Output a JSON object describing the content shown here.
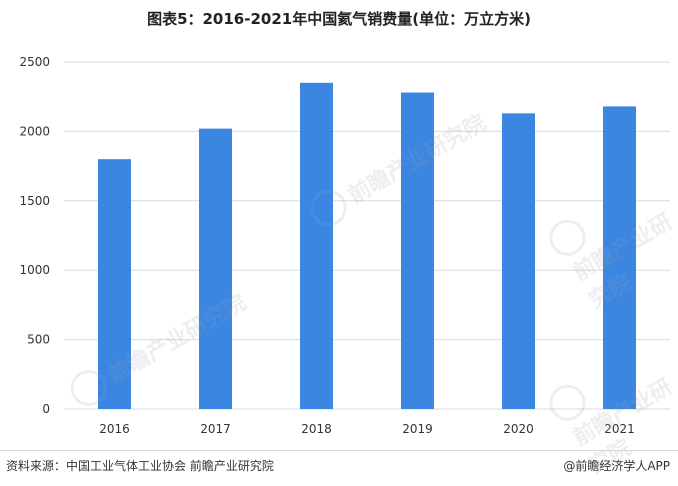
{
  "chart_data": {
    "type": "bar",
    "title": "图表5：2016-2021年中国氦气销费量(单位：万立方米)",
    "categories": [
      "2016",
      "2017",
      "2018",
      "2019",
      "2020",
      "2021"
    ],
    "values": [
      1800,
      2020,
      2350,
      2280,
      2130,
      2180
    ],
    "ylim": [
      0,
      2500
    ],
    "yticks": [
      0,
      500,
      1000,
      1500,
      2000,
      2500
    ],
    "grid": true,
    "legend": "none",
    "bar_color": "#3a86e0"
  },
  "footer": {
    "source": "资料来源：中国工业气体工业协会 前瞻产业研究院",
    "brand": "@前瞻经济学人APP"
  },
  "watermark": {
    "text": "前瞻产业研究院"
  },
  "colors": {
    "grid": "#d9d9d9",
    "axis_text": "#333333"
  }
}
